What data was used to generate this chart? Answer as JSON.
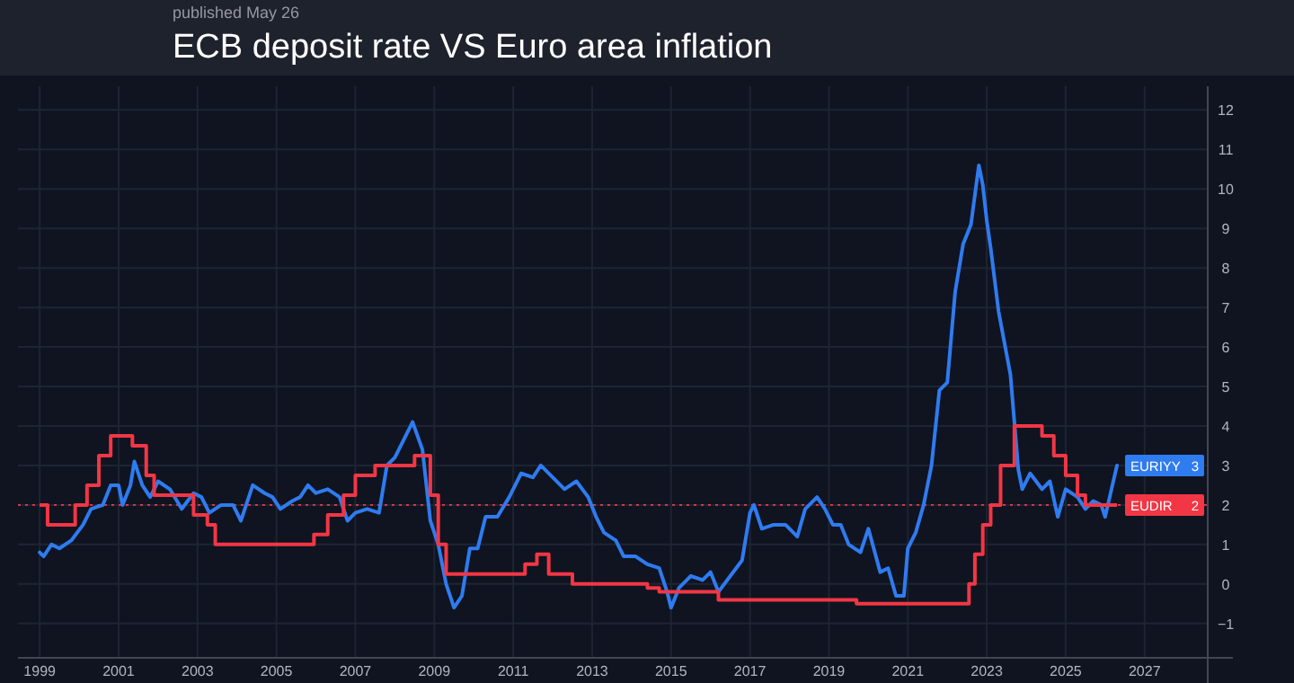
{
  "chart_data": {
    "type": "line",
    "title": "ECB deposit rate VS Euro area inflation",
    "subtitle": "published May 26",
    "xlim": [
      1998.45,
      2028.6
    ],
    "xticks": [
      1999,
      2001,
      2003,
      2005,
      2007,
      2009,
      2011,
      2013,
      2015,
      2017,
      2019,
      2021,
      2023,
      2025,
      2027
    ],
    "ylim": [
      -1.87,
      12.6
    ],
    "yticks": [
      {
        "value": -1,
        "label": "−1"
      },
      0,
      1,
      2,
      3,
      4,
      5,
      6,
      7,
      8,
      9,
      10,
      11,
      12
    ],
    "grid": true,
    "line_style": "solid",
    "annotations": [
      "3",
      "2"
    ],
    "ref_lines": [
      {
        "axis": "y",
        "value": 2,
        "color": "#f23645",
        "line_style": "dotted"
      }
    ],
    "series": [
      {
        "name": "EURIYY",
        "color": "#2f7bf0",
        "x": [
          1999.0,
          1999.1,
          1999.3,
          1999.5,
          1999.8,
          2000.1,
          2000.3,
          2000.6,
          2000.8,
          2001.0,
          2001.1,
          2001.3,
          2001.4,
          2001.6,
          2001.8,
          2002.0,
          2002.3,
          2002.6,
          2002.9,
          2003.1,
          2003.3,
          2003.6,
          2003.9,
          2004.1,
          2004.4,
          2004.7,
          2004.9,
          2005.1,
          2005.4,
          2005.6,
          2005.8,
          2006.0,
          2006.3,
          2006.6,
          2006.8,
          2007.0,
          2007.3,
          2007.6,
          2007.8,
          2008.0,
          2008.2,
          2008.45,
          2008.7,
          2008.9,
          2009.1,
          2009.3,
          2009.5,
          2009.7,
          2009.9,
          2010.1,
          2010.3,
          2010.6,
          2010.9,
          2011.2,
          2011.5,
          2011.7,
          2012.0,
          2012.3,
          2012.6,
          2012.9,
          2013.1,
          2013.3,
          2013.6,
          2013.8,
          2014.1,
          2014.4,
          2014.7,
          2014.9,
          2015.0,
          2015.2,
          2015.5,
          2015.8,
          2016.0,
          2016.2,
          2016.5,
          2016.8,
          2017.0,
          2017.1,
          2017.3,
          2017.6,
          2017.9,
          2018.2,
          2018.4,
          2018.7,
          2018.9,
          2019.1,
          2019.3,
          2019.5,
          2019.8,
          2020.0,
          2020.3,
          2020.5,
          2020.7,
          2020.9,
          2021.0,
          2021.2,
          2021.4,
          2021.6,
          2021.8,
          2022.0,
          2022.2,
          2022.4,
          2022.6,
          2022.8,
          2022.9,
          2023.0,
          2023.1,
          2023.3,
          2023.6,
          2023.8,
          2023.9,
          2024.1,
          2024.4,
          2024.6,
          2024.8,
          2025.0,
          2025.3,
          2025.5,
          2025.7,
          2025.9,
          2026.0,
          2026.3
        ],
        "values": [
          0.8,
          0.7,
          1.0,
          0.9,
          1.1,
          1.5,
          1.9,
          2.0,
          2.5,
          2.5,
          2.0,
          2.5,
          3.1,
          2.5,
          2.2,
          2.6,
          2.4,
          1.9,
          2.3,
          2.2,
          1.8,
          2.0,
          2.0,
          1.6,
          2.5,
          2.3,
          2.2,
          1.9,
          2.1,
          2.2,
          2.5,
          2.3,
          2.4,
          2.2,
          1.6,
          1.8,
          1.9,
          1.8,
          3.0,
          3.2,
          3.6,
          4.1,
          3.4,
          1.6,
          1.0,
          0.0,
          -0.6,
          -0.3,
          0.9,
          0.9,
          1.7,
          1.7,
          2.2,
          2.8,
          2.7,
          3.0,
          2.7,
          2.4,
          2.6,
          2.2,
          1.7,
          1.3,
          1.1,
          0.7,
          0.7,
          0.5,
          0.4,
          -0.2,
          -0.6,
          -0.1,
          0.2,
          0.1,
          0.3,
          -0.2,
          0.2,
          0.6,
          1.8,
          2.0,
          1.4,
          1.5,
          1.5,
          1.2,
          1.9,
          2.2,
          1.9,
          1.5,
          1.5,
          1.0,
          0.8,
          1.4,
          0.3,
          0.4,
          -0.3,
          -0.3,
          0.9,
          1.3,
          2.0,
          3.0,
          4.9,
          5.1,
          7.4,
          8.6,
          9.1,
          10.6,
          10.1,
          9.2,
          8.5,
          6.9,
          5.3,
          2.9,
          2.4,
          2.8,
          2.4,
          2.6,
          1.7,
          2.4,
          2.2,
          1.9,
          2.1,
          2.0,
          1.7,
          3.0
        ]
      },
      {
        "name": "EUDIR",
        "type": "step",
        "color": "#f23645",
        "x": [
          1999.0,
          1999.2,
          1999.9,
          2000.2,
          2000.5,
          2000.8,
          2001.35,
          2001.7,
          2001.9,
          2002.9,
          2003.25,
          2003.45,
          2005.95,
          2006.3,
          2006.7,
          2007.0,
          2007.5,
          2008.5,
          2008.9,
          2009.1,
          2009.3,
          2011.3,
          2011.6,
          2011.9,
          2012.5,
          2014.4,
          2014.7,
          2016.2,
          2019.7,
          2022.55,
          2022.7,
          2022.9,
          2023.1,
          2023.35,
          2023.7,
          2024.4,
          2024.7,
          2025.0,
          2025.3,
          2025.5,
          2026.3
        ],
        "values": [
          2.0,
          1.5,
          2.0,
          2.5,
          3.25,
          3.75,
          3.5,
          2.75,
          2.25,
          1.75,
          1.5,
          1.0,
          1.25,
          1.75,
          2.25,
          2.75,
          3.0,
          3.25,
          2.25,
          1.0,
          0.25,
          0.5,
          0.75,
          0.25,
          0.0,
          -0.1,
          -0.2,
          -0.4,
          -0.5,
          0.0,
          0.75,
          1.5,
          2.0,
          3.0,
          4.0,
          3.75,
          3.25,
          2.75,
          2.25,
          2.0,
          2.0
        ]
      }
    ]
  }
}
